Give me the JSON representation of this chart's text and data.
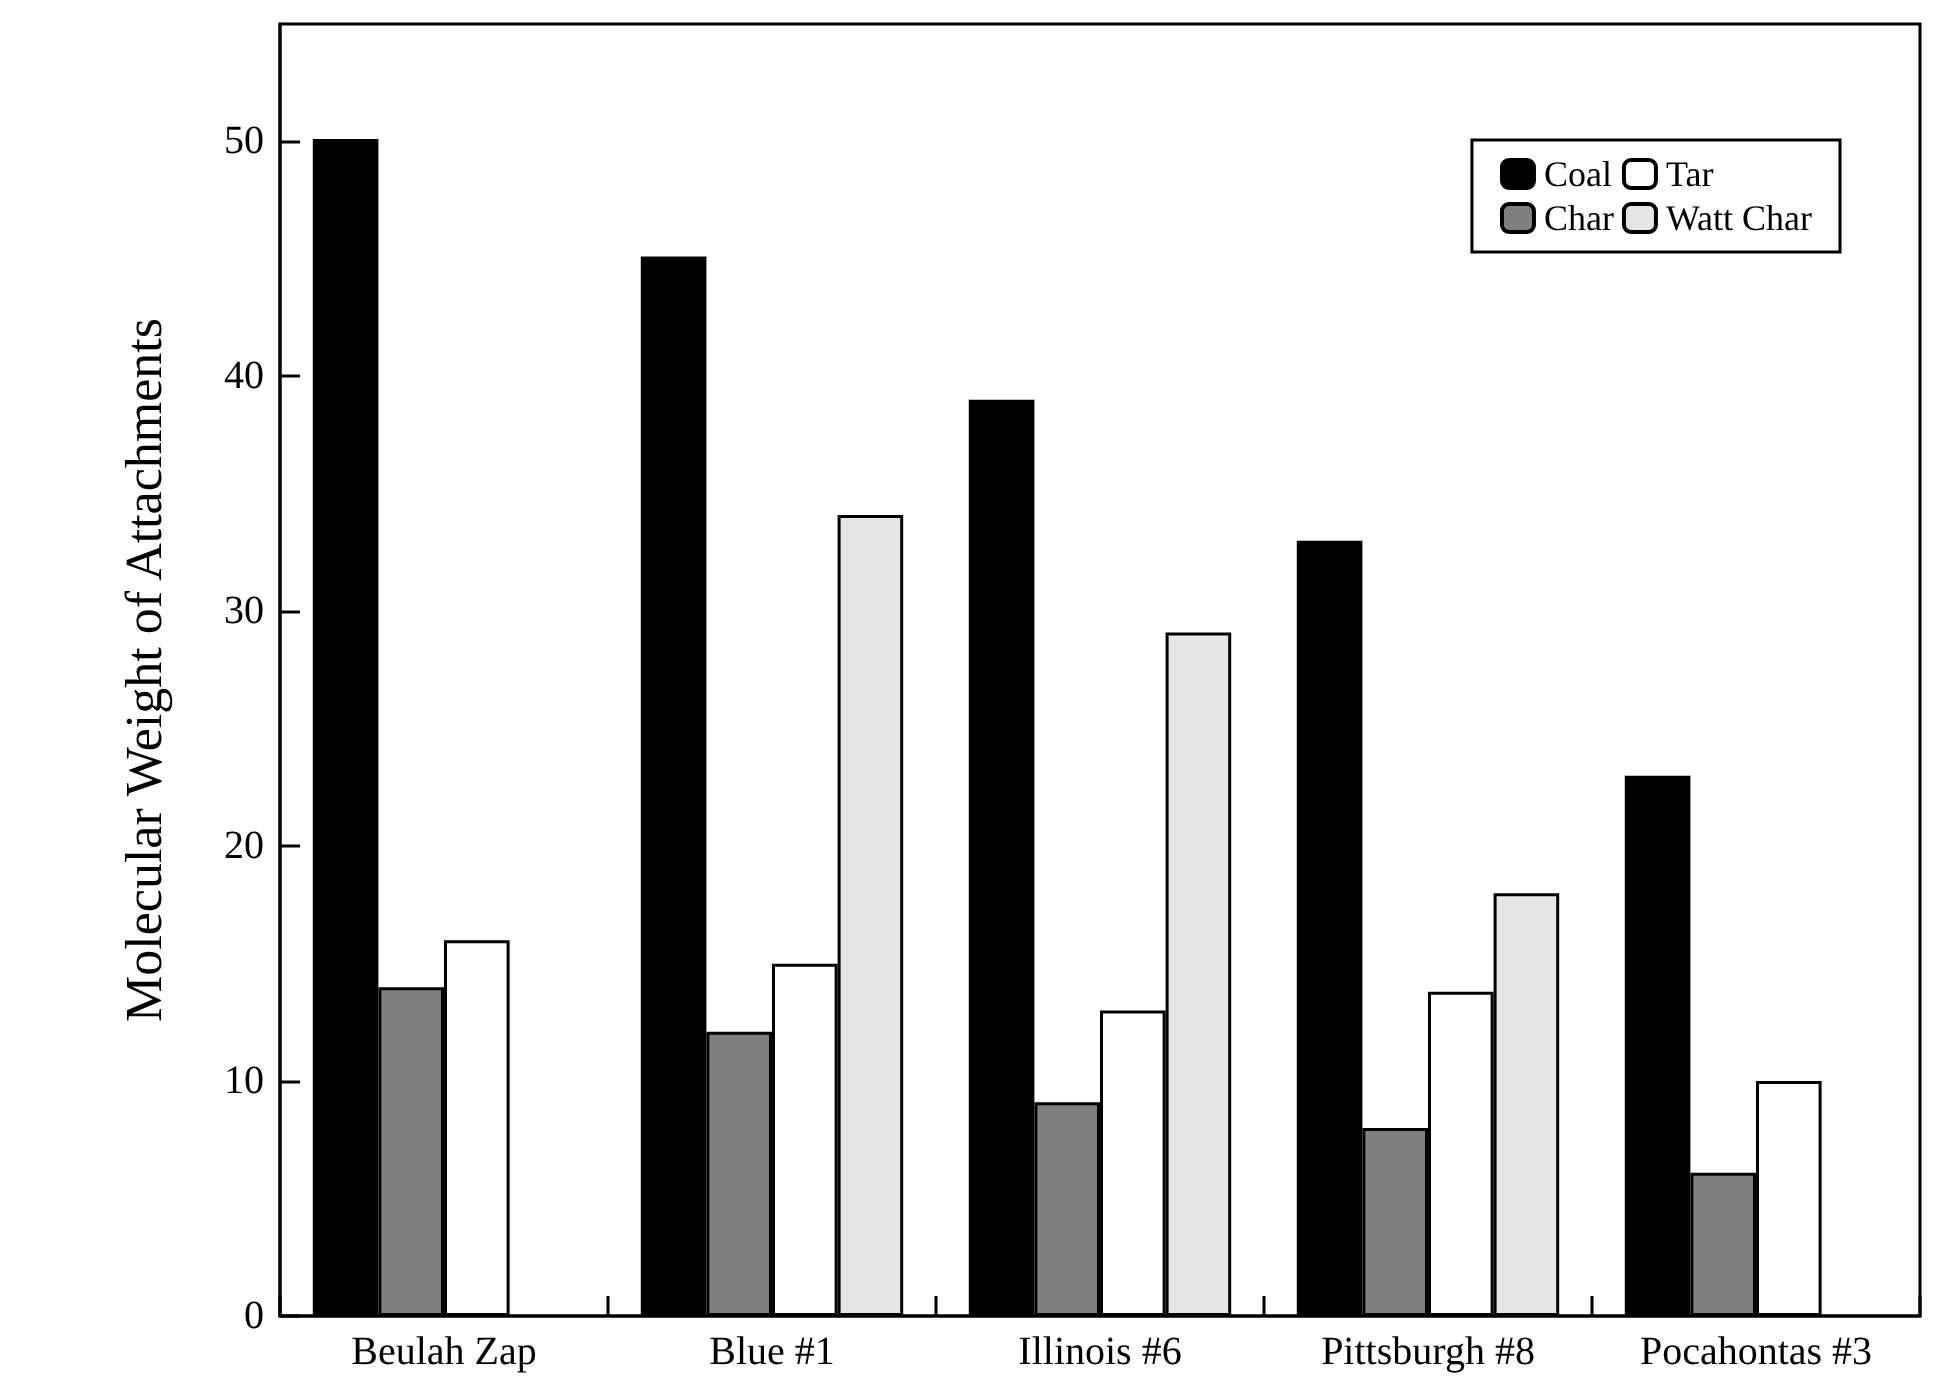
{
  "chart_data": {
    "type": "bar",
    "ylabel": "Molecular Weight of Attachments",
    "categories": [
      "Beulah Zap",
      "Blue #1",
      "Illinois #6",
      "Pittsburgh #8",
      "Pocahontas #3"
    ],
    "series": [
      {
        "name": "Coal",
        "color": "#000000",
        "values": [
          50.1,
          45.1,
          39,
          33,
          23
        ]
      },
      {
        "name": "Char",
        "color": "#7f7f7f",
        "values": [
          14,
          12.1,
          9.1,
          8,
          6.1
        ]
      },
      {
        "name": "Tar",
        "color": "#ffffff",
        "values": [
          16,
          15,
          13,
          13.8,
          10
        ]
      },
      {
        "name": "Watt Char",
        "color": "#e6e6e6",
        "values": [
          null,
          34.1,
          29.1,
          18,
          null
        ]
      }
    ],
    "ylim": [
      0,
      55
    ],
    "yticks": [
      0,
      10,
      20,
      30,
      40,
      50
    ],
    "legend": "top right",
    "grid": false
  }
}
